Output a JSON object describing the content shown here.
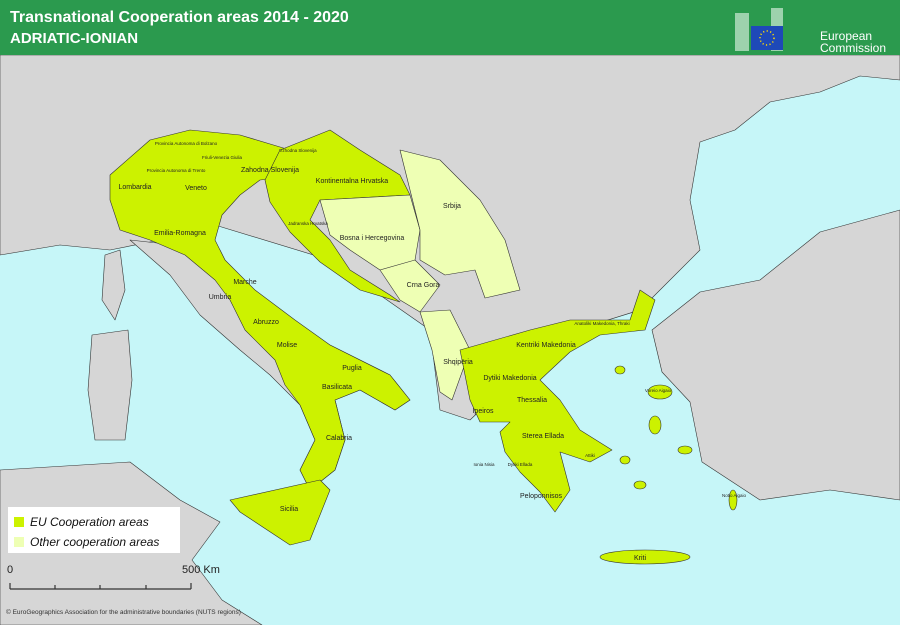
{
  "header": {
    "title": "Transnational Cooperation areas 2014 - 2020",
    "subtitle": "ADRIATIC-IONIAN",
    "logo_text_1": "European",
    "logo_text_2": "Commission"
  },
  "colors": {
    "header": "#2b9a4e",
    "sea": "#c6f6f8",
    "land": "#d6d6d6",
    "eu_area": "#ccf200",
    "other_area": "#eeffb4"
  },
  "legend": {
    "items": [
      {
        "label": "EU Cooperation areas",
        "color": "#ccf200"
      },
      {
        "label": "Other cooperation areas",
        "color": "#eeffb4"
      }
    ]
  },
  "scale": {
    "start": "0",
    "end": "500 Km"
  },
  "copyright": "© EuroGeographics Association for the administrative boundaries (NUTS regions)",
  "regions": {
    "lombardia": "Lombardia",
    "veneto": "Veneto",
    "emilia": "Emilia-Romagna",
    "bolzano": "Provincia Autonoma di Bolzano",
    "trento": "Provincia Autonoma di Trento",
    "friuli": "Friuli-Venezia Giulia",
    "zahodna": "Zahodna Slovenija",
    "vzhodna": "Vzhodna Slovenija",
    "kontinentalna": "Kontinentalna Hrvatska",
    "jadranska": "Jadranska Hrvatska",
    "bosna": "Bosna i Hercegovina",
    "srbija": "Srbija",
    "crnagora": "Crna Gora",
    "shqiperia": "Shqipëria",
    "marche": "Marche",
    "umbria": "Umbria",
    "abruzzo": "Abruzzo",
    "molise": "Molise",
    "puglia": "Puglia",
    "basilicata": "Basilicata",
    "calabria": "Calabria",
    "sicilia": "Sicilia",
    "ipeiros": "Ipeiros",
    "dytiki_makedonia": "Dytiki Makedonia",
    "kentriki_makedonia": "Kentriki Makedonia",
    "anatoliki": "Anatoliki Makedonia, Thraki",
    "thessalia": "Thessalia",
    "sterea": "Sterea Ellada",
    "ionia": "Ionia Nisia",
    "dytiki_ellada": "Dytiki Ellada",
    "attiki": "Attiki",
    "peloponnisos": "Peloponnisos",
    "voreio": "Voreio Aigaio",
    "notio": "Notio Aigaio",
    "kriti": "Kriti"
  }
}
